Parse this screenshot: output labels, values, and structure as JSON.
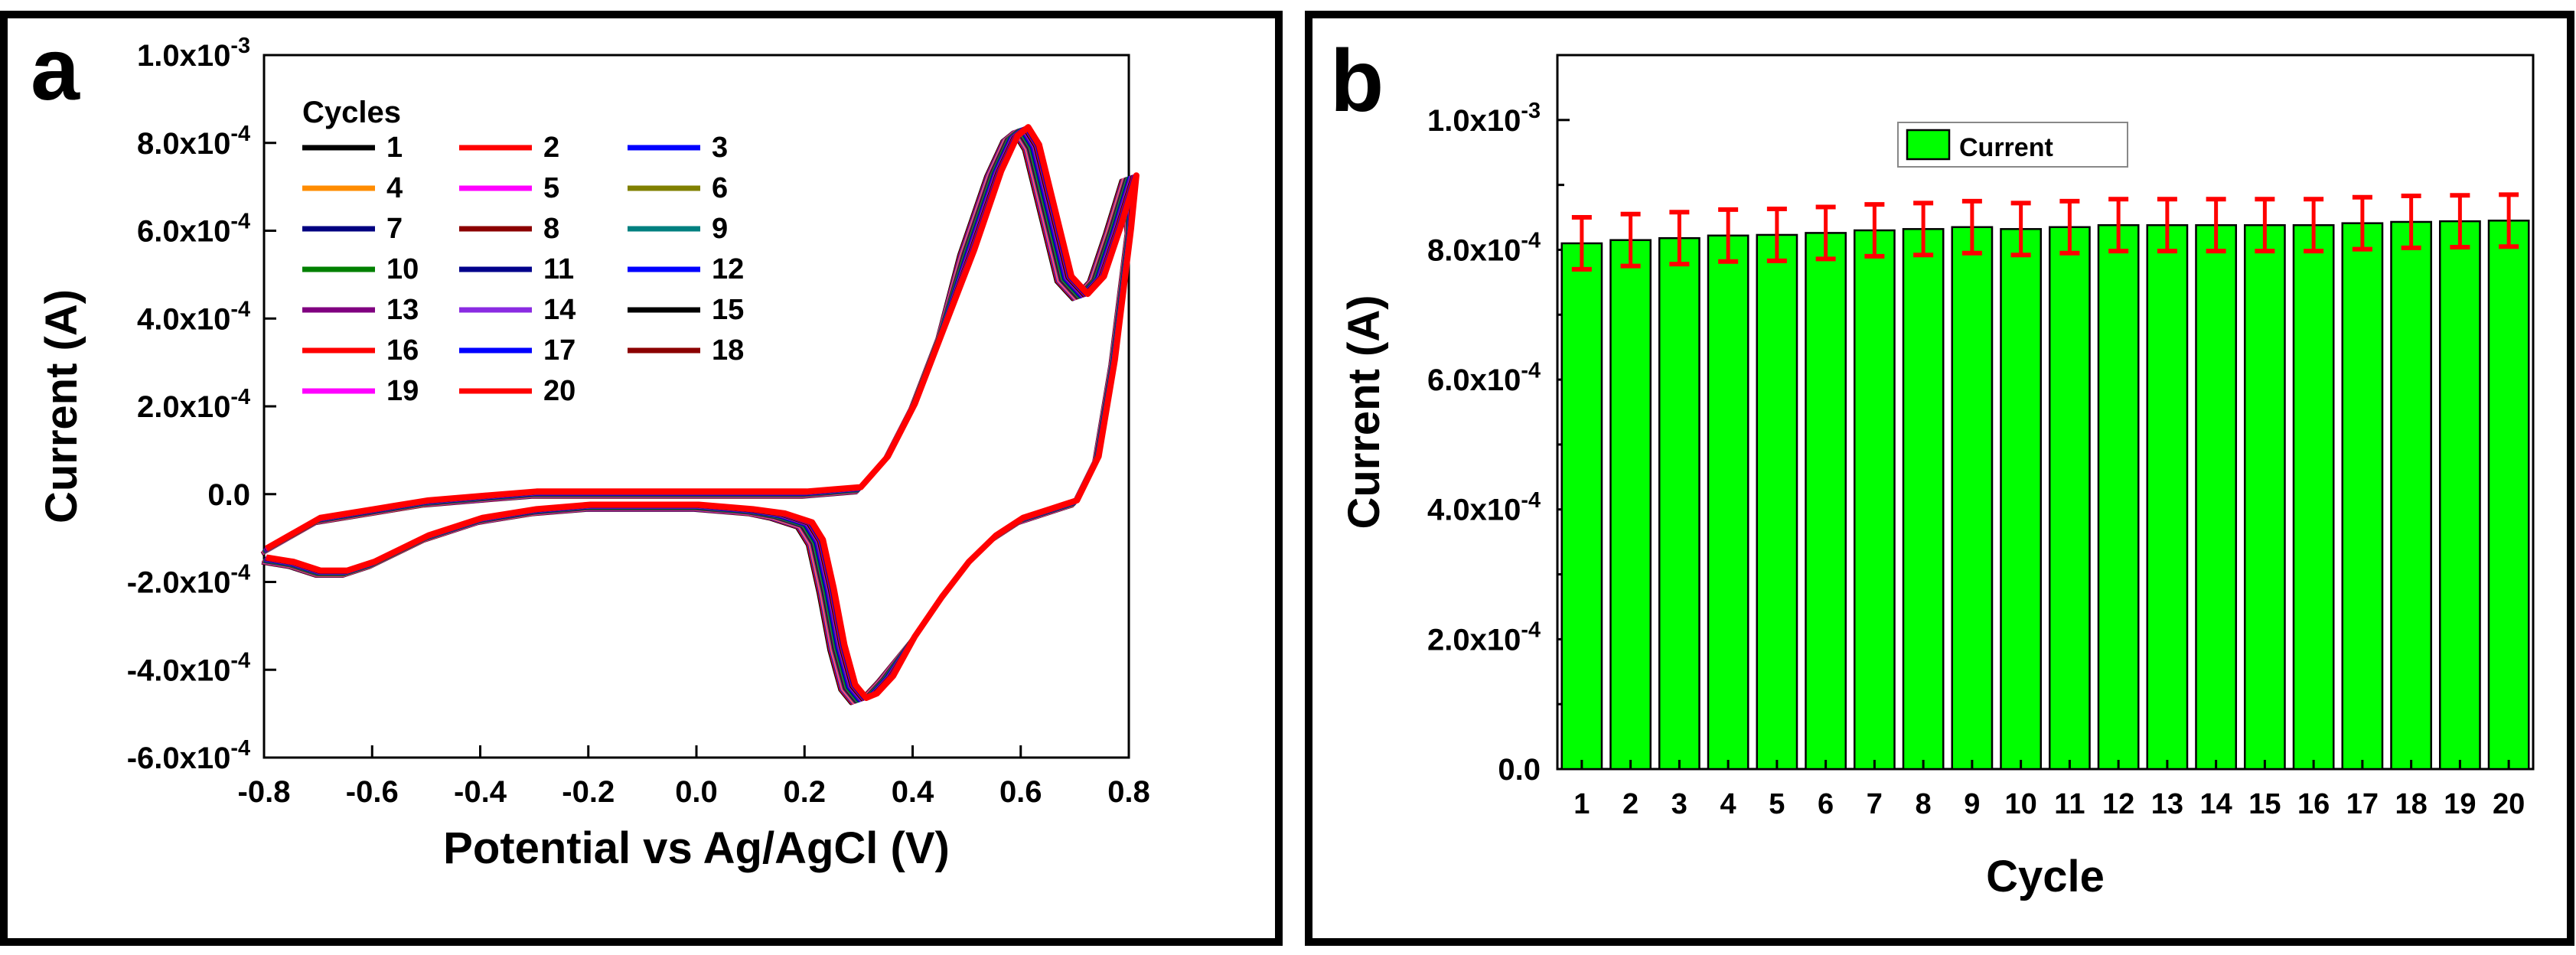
{
  "chart_data": [
    {
      "panel": "a",
      "panel_label": "a",
      "type": "line",
      "title": "",
      "xlabel": "Potential vs Ag/AgCl (V)",
      "ylabel": "Current (A)",
      "xlim": [
        -0.8,
        0.8
      ],
      "ylim": [
        -0.0006,
        0.001
      ],
      "x_ticks": [
        "-0.8",
        "-0.6",
        "-0.4",
        "-0.2",
        "0.0",
        "0.2",
        "0.4",
        "0.6",
        "0.8"
      ],
      "x_tick_values": [
        -0.8,
        -0.6,
        -0.4,
        -0.2,
        0.0,
        0.2,
        0.4,
        0.6,
        0.8
      ],
      "y_ticks": [
        {
          "value": 0.001,
          "mantissa": "1.0x10",
          "exp": "-3"
        },
        {
          "value": 0.0008,
          "mantissa": "8.0x10",
          "exp": "-4"
        },
        {
          "value": 0.0006,
          "mantissa": "6.0x10",
          "exp": "-4"
        },
        {
          "value": 0.0004,
          "mantissa": "4.0x10",
          "exp": "-4"
        },
        {
          "value": 0.0002,
          "mantissa": "2.0x10",
          "exp": "-4"
        },
        {
          "value": 0.0,
          "mantissa": "0.0",
          "exp": ""
        },
        {
          "value": -0.0002,
          "mantissa": "-2.0x10",
          "exp": "-4"
        },
        {
          "value": -0.0004,
          "mantissa": "-4.0x10",
          "exp": "-4"
        },
        {
          "value": -0.0006,
          "mantissa": "-6.0x10",
          "exp": "-4"
        }
      ],
      "legend_title": "Cycles",
      "legend_position": "top-left",
      "series": [
        {
          "name": "1",
          "color": "#000000"
        },
        {
          "name": "2",
          "color": "#ff0000"
        },
        {
          "name": "3",
          "color": "#0000ff"
        },
        {
          "name": "4",
          "color": "#ff8c00"
        },
        {
          "name": "5",
          "color": "#ff00ff"
        },
        {
          "name": "6",
          "color": "#808000"
        },
        {
          "name": "7",
          "color": "#000080"
        },
        {
          "name": "8",
          "color": "#8b0000"
        },
        {
          "name": "9",
          "color": "#008080"
        },
        {
          "name": "10",
          "color": "#008000"
        },
        {
          "name": "11",
          "color": "#00008b"
        },
        {
          "name": "12",
          "color": "#0000ff"
        },
        {
          "name": "13",
          "color": "#800080"
        },
        {
          "name": "14",
          "color": "#8a2be2"
        },
        {
          "name": "15",
          "color": "#000000"
        },
        {
          "name": "16",
          "color": "#ff0000"
        },
        {
          "name": "17",
          "color": "#0000ff"
        },
        {
          "name": "18",
          "color": "#8b0000"
        },
        {
          "name": "19",
          "color": "#ff00ff"
        },
        {
          "name": "20",
          "color": "#ff0000"
        }
      ],
      "forward_scan": {
        "x": [
          -0.8,
          -0.7,
          -0.6,
          -0.5,
          -0.4,
          -0.3,
          -0.2,
          -0.1,
          0.0,
          0.1,
          0.2,
          0.3,
          0.35,
          0.4,
          0.45,
          0.5,
          0.55,
          0.58,
          0.6,
          0.62,
          0.65,
          0.68,
          0.71,
          0.74,
          0.77,
          0.8
        ],
        "y": [
          -0.00013,
          -6e-05,
          -4e-05,
          -2e-05,
          -1e-05,
          0.0,
          0.0,
          0.0,
          0.0,
          0.0,
          0.0,
          1e-05,
          8e-05,
          0.0002,
          0.00036,
          0.00055,
          0.00073,
          0.00081,
          0.00083,
          0.00079,
          0.00064,
          0.00049,
          0.00045,
          0.00049,
          0.0006,
          0.00072
        ]
      },
      "reverse_scan": {
        "x": [
          0.8,
          0.77,
          0.74,
          0.7,
          0.65,
          0.6,
          0.55,
          0.5,
          0.45,
          0.4,
          0.35,
          0.32,
          0.3,
          0.28,
          0.26,
          0.24,
          0.22,
          0.2,
          0.15,
          0.1,
          0.0,
          -0.1,
          -0.2,
          -0.3,
          -0.4,
          -0.5,
          -0.6,
          -0.65,
          -0.7,
          -0.75,
          -0.8
        ],
        "y": [
          0.0006,
          0.0003,
          8e-05,
          -2e-05,
          -4e-05,
          -6e-05,
          -0.0001,
          -0.00016,
          -0.00024,
          -0.00033,
          -0.00042,
          -0.00046,
          -0.00047,
          -0.00044,
          -0.00035,
          -0.00022,
          -0.00011,
          -7e-05,
          -5e-05,
          -4e-05,
          -3e-05,
          -3e-05,
          -3e-05,
          -4e-05,
          -6e-05,
          -0.0001,
          -0.00016,
          -0.00018,
          -0.00018,
          -0.00016,
          -0.00015
        ]
      }
    },
    {
      "panel": "b",
      "panel_label": "b",
      "type": "bar",
      "title": "",
      "xlabel": "Cycle",
      "ylabel": "Current (A)",
      "ylim": [
        0,
        0.0011
      ],
      "categories": [
        "1",
        "2",
        "3",
        "4",
        "5",
        "6",
        "7",
        "8",
        "9",
        "10",
        "11",
        "12",
        "13",
        "14",
        "15",
        "16",
        "17",
        "18",
        "19",
        "20"
      ],
      "series": [
        {
          "name": "Current",
          "color": "#00ff00",
          "values": [
            0.00081,
            0.000815,
            0.000818,
            0.000822,
            0.000823,
            0.000826,
            0.00083,
            0.000832,
            0.000835,
            0.000832,
            0.000835,
            0.000838,
            0.000838,
            0.000838,
            0.000838,
            0.000838,
            0.000841,
            0.000843,
            0.000844,
            0.000845
          ],
          "error": 4e-05,
          "error_color": "#ff0000"
        }
      ],
      "y_ticks": [
        {
          "value": 0.0,
          "mantissa": "0.0",
          "exp": ""
        },
        {
          "value": 0.0002,
          "mantissa": "2.0x10",
          "exp": "-4"
        },
        {
          "value": 0.0004,
          "mantissa": "4.0x10",
          "exp": "-4"
        },
        {
          "value": 0.0006,
          "mantissa": "6.0x10",
          "exp": "-4"
        },
        {
          "value": 0.0008,
          "mantissa": "8.0x10",
          "exp": "-4"
        },
        {
          "value": 0.001,
          "mantissa": "1.0x10",
          "exp": "-3"
        }
      ],
      "legend_position": "top-center"
    }
  ]
}
